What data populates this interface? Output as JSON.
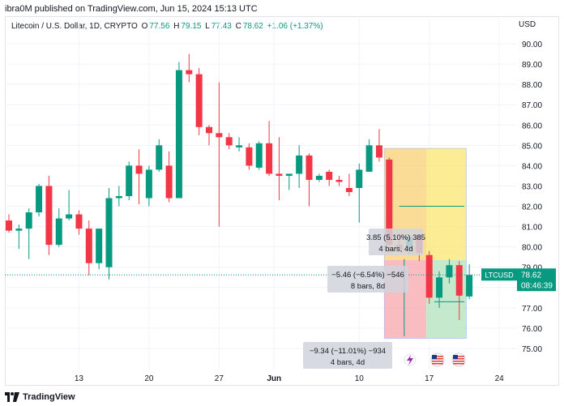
{
  "header": {
    "published": "ibra0M published on TradingView.com, Jun 15, 2024 15:13 UTC"
  },
  "symbol": {
    "name": "Litecoin / U.S. Dollar, 1D, CRYPTO",
    "o_label": "O",
    "o_value": "77.56",
    "h_label": "H",
    "h_value": "79.15",
    "l_label": "L",
    "l_value": "77.43",
    "c_label": "C",
    "c_value": "78.62",
    "change": "+1.06 (+1.37%)"
  },
  "currency": "USD",
  "colors": {
    "up": "#089981",
    "down": "#f23645"
  },
  "price_labels": [
    "90.00",
    "89.00",
    "88.00",
    "87.00",
    "86.00",
    "85.00",
    "84.00",
    "83.00",
    "82.00",
    "81.00",
    "80.00",
    "79.00",
    "78.00",
    "77.00",
    "76.00",
    "75.00"
  ],
  "time_labels": [
    "13",
    "20",
    "27",
    "Jun",
    "10",
    "17",
    "24"
  ],
  "last_price": {
    "symbol": "LTCUSD",
    "price": "78.62",
    "countdown": "08:46:39"
  },
  "measures": [
    {
      "line1": "3.85 (5.10%) 385",
      "line2": "4 bars, 4d"
    },
    {
      "line1": "−5.46 (−6.54%) −546",
      "line2": "8 bars, 8d"
    },
    {
      "line1": "−9.34 (−11.01%) −934",
      "line2": "4 bars, 4d"
    }
  ],
  "footer": {
    "brand": "TradingView"
  },
  "chart_data": {
    "type": "candlestick",
    "title": "Litecoin / U.S. Dollar, 1D, CRYPTO",
    "ylim": [
      74.5,
      91
    ],
    "candles": [
      {
        "o": 81.3,
        "h": 81.6,
        "l": 80.7,
        "c": 80.8
      },
      {
        "o": 80.8,
        "h": 81.1,
        "l": 79.9,
        "c": 80.9
      },
      {
        "o": 80.9,
        "h": 81.9,
        "l": 79.4,
        "c": 81.7
      },
      {
        "o": 81.7,
        "h": 83.1,
        "l": 81.5,
        "c": 83.0
      },
      {
        "o": 83.0,
        "h": 83.5,
        "l": 79.6,
        "c": 80.1
      },
      {
        "o": 80.1,
        "h": 81.9,
        "l": 80.0,
        "c": 81.4
      },
      {
        "o": 81.4,
        "h": 82.8,
        "l": 81.3,
        "c": 81.6
      },
      {
        "o": 81.6,
        "h": 81.8,
        "l": 80.6,
        "c": 80.9
      },
      {
        "o": 80.9,
        "h": 81.3,
        "l": 78.6,
        "c": 79.2
      },
      {
        "o": 79.2,
        "h": 80.9,
        "l": 78.9,
        "c": 80.9
      },
      {
        "o": 79.0,
        "h": 82.9,
        "l": 78.4,
        "c": 82.4
      },
      {
        "o": 82.4,
        "h": 83.0,
        "l": 82.0,
        "c": 82.5
      },
      {
        "o": 82.5,
        "h": 84.2,
        "l": 82.3,
        "c": 84.0
      },
      {
        "o": 84.0,
        "h": 84.8,
        "l": 82.1,
        "c": 83.6
      },
      {
        "o": 82.4,
        "h": 84.0,
        "l": 82.0,
        "c": 83.8
      },
      {
        "o": 83.8,
        "h": 85.3,
        "l": 83.7,
        "c": 85.0
      },
      {
        "o": 84.0,
        "h": 84.7,
        "l": 82.2,
        "c": 82.4
      },
      {
        "o": 82.4,
        "h": 89.1,
        "l": 82.4,
        "c": 88.7
      },
      {
        "o": 88.7,
        "h": 89.5,
        "l": 88.1,
        "c": 88.5
      },
      {
        "o": 88.5,
        "h": 88.8,
        "l": 85.5,
        "c": 85.9
      },
      {
        "o": 85.9,
        "h": 86.0,
        "l": 85.0,
        "c": 85.6
      },
      {
        "o": 85.6,
        "h": 88.1,
        "l": 81.0,
        "c": 85.4
      },
      {
        "o": 85.4,
        "h": 85.6,
        "l": 84.8,
        "c": 85.0
      },
      {
        "o": 84.9,
        "h": 85.4,
        "l": 84.7,
        "c": 85.0
      },
      {
        "o": 84.9,
        "h": 85.1,
        "l": 83.8,
        "c": 84.0
      },
      {
        "o": 83.9,
        "h": 85.2,
        "l": 83.8,
        "c": 85.1
      },
      {
        "o": 85.1,
        "h": 86.2,
        "l": 83.5,
        "c": 83.6
      },
      {
        "o": 83.6,
        "h": 85.4,
        "l": 82.3,
        "c": 83.5
      },
      {
        "o": 83.5,
        "h": 83.6,
        "l": 82.8,
        "c": 83.6
      },
      {
        "o": 83.6,
        "h": 85.0,
        "l": 82.9,
        "c": 84.5
      },
      {
        "o": 84.5,
        "h": 84.6,
        "l": 82.0,
        "c": 83.3
      },
      {
        "o": 83.3,
        "h": 83.6,
        "l": 83.2,
        "c": 83.5
      },
      {
        "o": 83.7,
        "h": 83.8,
        "l": 83.0,
        "c": 83.3
      },
      {
        "o": 83.3,
        "h": 83.5,
        "l": 83.0,
        "c": 83.2
      },
      {
        "o": 82.9,
        "h": 83.6,
        "l": 82.5,
        "c": 82.7
      },
      {
        "o": 82.9,
        "h": 84.1,
        "l": 81.2,
        "c": 83.8
      },
      {
        "o": 83.7,
        "h": 85.3,
        "l": 83.7,
        "c": 85.0
      },
      {
        "o": 85.0,
        "h": 85.8,
        "l": 84.2,
        "c": 84.4
      },
      {
        "o": 84.3,
        "h": 84.4,
        "l": 79.7,
        "c": 80.1
      },
      {
        "o": 80.1,
        "h": 80.6,
        "l": 79.9,
        "c": 79.9
      },
      {
        "o": 79.9,
        "h": 80.6,
        "l": 79.6,
        "c": 80.5
      },
      {
        "o": 80.5,
        "h": 80.6,
        "l": 79.3,
        "c": 79.7
      },
      {
        "o": 79.6,
        "h": 79.8,
        "l": 77.2,
        "c": 77.5
      },
      {
        "o": 77.5,
        "h": 78.8,
        "l": 77.0,
        "c": 78.5
      },
      {
        "o": 78.5,
        "h": 79.4,
        "l": 78.2,
        "c": 79.1
      },
      {
        "o": 79.1,
        "h": 79.3,
        "l": 76.4,
        "c": 77.6
      },
      {
        "o": 77.56,
        "h": 79.15,
        "l": 77.43,
        "c": 78.62
      }
    ]
  }
}
